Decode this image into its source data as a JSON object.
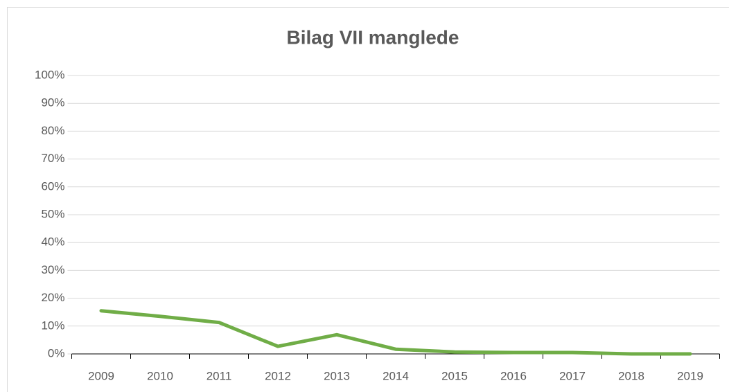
{
  "chart_data": {
    "type": "line",
    "title": "Bilag VII manglede",
    "categories": [
      "2009",
      "2010",
      "2011",
      "2012",
      "2013",
      "2014",
      "2015",
      "2016",
      "2017",
      "2018",
      "2019"
    ],
    "series": [
      {
        "name": "Bilag VII manglede",
        "color": "#70ad47",
        "values": [
          15.5,
          13.5,
          11.3,
          2.7,
          6.9,
          1.7,
          0.7,
          0.5,
          0.5,
          0,
          0
        ]
      }
    ],
    "ylim": [
      0,
      100
    ],
    "yticks": [
      {
        "value": 0,
        "label": "0%"
      },
      {
        "value": 10,
        "label": "10%"
      },
      {
        "value": 20,
        "label": "20%"
      },
      {
        "value": 30,
        "label": "30%"
      },
      {
        "value": 40,
        "label": "40%"
      },
      {
        "value": 50,
        "label": "50%"
      },
      {
        "value": 60,
        "label": "60%"
      },
      {
        "value": 70,
        "label": "70%"
      },
      {
        "value": 80,
        "label": "80%"
      },
      {
        "value": 90,
        "label": "90%"
      },
      {
        "value": 100,
        "label": "100%"
      }
    ],
    "grid": true
  }
}
